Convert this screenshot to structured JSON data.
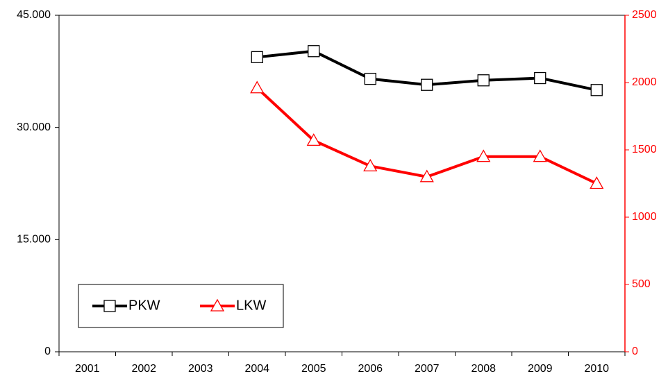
{
  "chart_data": {
    "type": "line",
    "categories": [
      "2001",
      "2002",
      "2003",
      "2004",
      "2005",
      "2006",
      "2007",
      "2008",
      "2009",
      "2010"
    ],
    "series": [
      {
        "name": "PKW",
        "color": "#000000",
        "marker": "square",
        "values": [
          null,
          null,
          null,
          39400,
          40200,
          36500,
          35700,
          36300,
          36600,
          35000
        ]
      },
      {
        "name": "LKW",
        "color": "#ff0000",
        "marker": "triangle",
        "axis": "y2",
        "values": [
          null,
          null,
          null,
          1960,
          1570,
          1380,
          1300,
          1450,
          1450,
          1250
        ]
      }
    ],
    "ylim": [
      0,
      45000
    ],
    "yticks": [
      0,
      {
        "value": 15000,
        "label": "15.000"
      },
      {
        "value": 30000,
        "label": "30.000"
      },
      {
        "value": 45000,
        "label": "45.000"
      }
    ],
    "y2lim": [
      0,
      2500
    ],
    "y2ticks": [
      0,
      500,
      1000,
      1500,
      2000,
      2500
    ],
    "y2color": "#ff0000",
    "grid": false,
    "legend": "lower left"
  }
}
